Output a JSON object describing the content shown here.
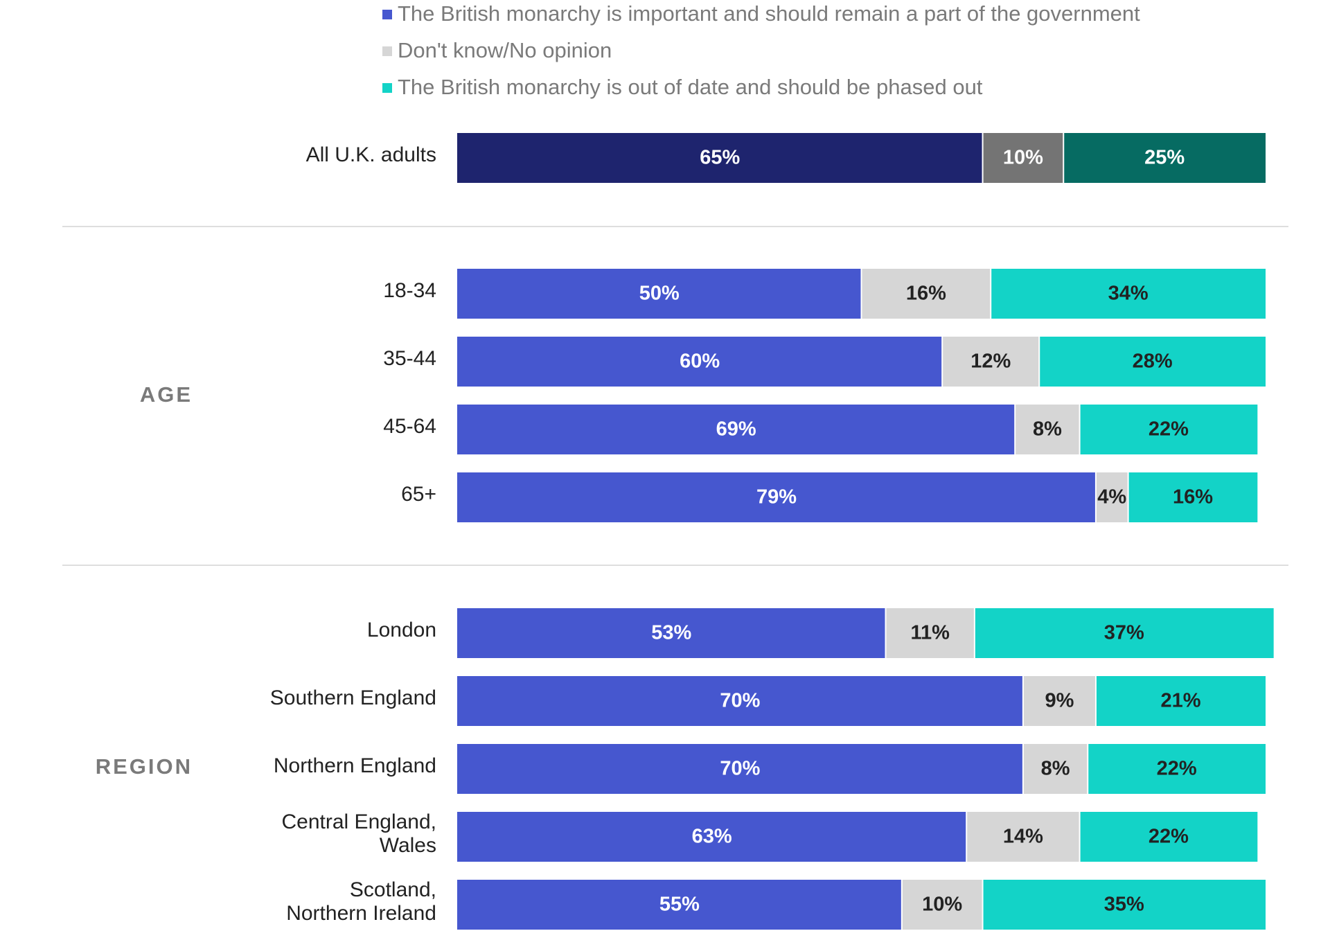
{
  "chart_data": {
    "type": "bar",
    "orientation": "horizontal",
    "stacked": true,
    "legend": {
      "position": "top",
      "entries": [
        {
          "label": "The British monarchy is important and should remain a part of the government",
          "color": "#4657cf"
        },
        {
          "label": "Don't know/No opinion",
          "color": "#d6d6d6"
        },
        {
          "label": "The British monarchy is out of date and should be phased out",
          "color": "#13d3c7"
        }
      ]
    },
    "series_names": [
      "The British monarchy is important and should remain a part of the government",
      "Don't know/No opinion",
      "The British monarchy is out of date and should be phased out"
    ],
    "xlim": [
      0,
      100
    ],
    "grid": false,
    "groups": [
      {
        "label": "",
        "colors": [
          "#1e246e",
          "#747474",
          "#066b62"
        ],
        "label_colors": [
          "#ffffff",
          "#ffffff",
          "#ffffff"
        ],
        "rows": [
          {
            "label": [
              "All U.K. adults"
            ],
            "values": [
              65,
              10,
              25
            ],
            "labels": [
              "65%",
              "10%",
              "25%"
            ]
          }
        ]
      },
      {
        "label": "AGE",
        "colors": [
          "#4657cf",
          "#d6d6d6",
          "#13d3c7"
        ],
        "label_colors": [
          "#ffffff",
          "#222222",
          "#222222"
        ],
        "rows": [
          {
            "label": [
              "18-34"
            ],
            "values": [
              50,
              16,
              34
            ],
            "labels": [
              "50%",
              "16%",
              "34%"
            ]
          },
          {
            "label": [
              "35-44"
            ],
            "values": [
              60,
              12,
              28
            ],
            "labels": [
              "60%",
              "12%",
              "28%"
            ]
          },
          {
            "label": [
              "45-64"
            ],
            "values": [
              69,
              8,
              22
            ],
            "labels": [
              "69%",
              "8%",
              "22%"
            ]
          },
          {
            "label": [
              "65+"
            ],
            "values": [
              79,
              4,
              16
            ],
            "labels": [
              "79%",
              "4%",
              "16%"
            ]
          }
        ]
      },
      {
        "label": "REGION",
        "colors": [
          "#4657cf",
          "#d6d6d6",
          "#13d3c7"
        ],
        "label_colors": [
          "#ffffff",
          "#222222",
          "#222222"
        ],
        "rows": [
          {
            "label": [
              "London"
            ],
            "values": [
              53,
              11,
              37
            ],
            "labels": [
              "53%",
              "11%",
              "37%"
            ]
          },
          {
            "label": [
              "Southern England"
            ],
            "values": [
              70,
              9,
              21
            ],
            "labels": [
              "70%",
              "9%",
              "21%"
            ]
          },
          {
            "label": [
              "Northern England"
            ],
            "values": [
              70,
              8,
              22
            ],
            "labels": [
              "70%",
              "8%",
              "22%"
            ]
          },
          {
            "label": [
              "Central England,",
              "Wales"
            ],
            "values": [
              63,
              14,
              22
            ],
            "labels": [
              "63%",
              "14%",
              "22%"
            ]
          },
          {
            "label": [
              "Scotland,",
              "Northern Ireland"
            ],
            "values": [
              55,
              10,
              35
            ],
            "labels": [
              "55%",
              "10%",
              "35%"
            ]
          }
        ]
      }
    ]
  }
}
